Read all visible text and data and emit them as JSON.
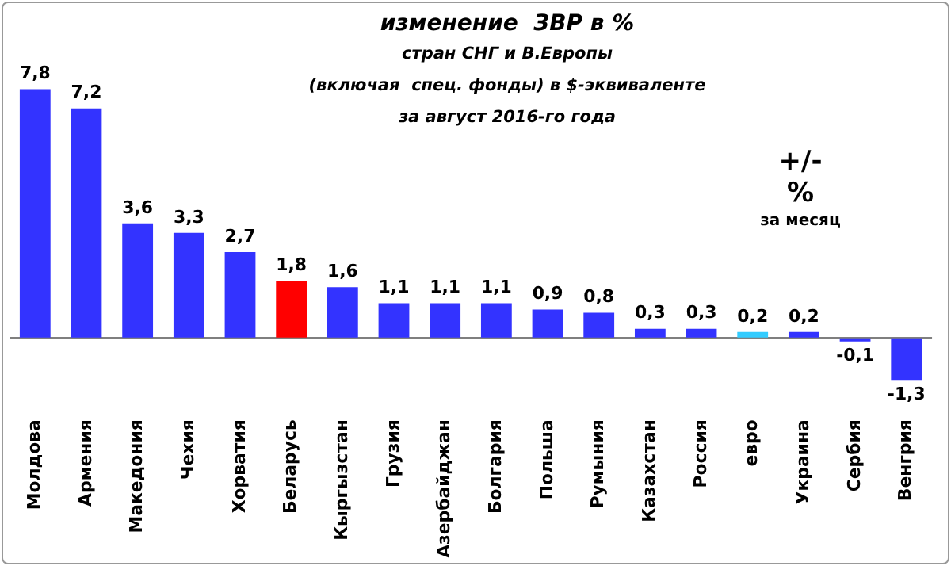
{
  "chart_data": {
    "type": "bar",
    "title": "изменение  ЗВР в %\nстран СНГ и В.Европы\n(включая  спец. фонды) в $-эквиваленте\nза август 2016-го года",
    "categories": [
      "Молдова",
      "Армения",
      "Македония",
      "Чехия",
      "Хорватия",
      "Беларусь",
      "Кыргызстан",
      "Грузия",
      "Азербайджан",
      "Болгария",
      "Польша",
      "Румыния",
      "Казахстан",
      "Россия",
      "евро",
      "Украина",
      "Сербия",
      "Венгрия"
    ],
    "values": [
      7.8,
      7.2,
      3.6,
      3.3,
      2.7,
      1.8,
      1.6,
      1.1,
      1.1,
      1.1,
      0.9,
      0.8,
      0.3,
      0.3,
      0.2,
      0.2,
      -0.1,
      -1.3
    ],
    "value_labels": [
      "7,8",
      "7,2",
      "3,6",
      "3,3",
      "2,7",
      "1,8",
      "1,6",
      "1,1",
      "1,1",
      "1,1",
      "0,9",
      "0,8",
      "0,3",
      "0,3",
      "0,2",
      "0,2",
      "-0,1",
      "-1,3"
    ],
    "colors": [
      "#3333ff",
      "#3333ff",
      "#3333ff",
      "#3333ff",
      "#3333ff",
      "#ff0000",
      "#3333ff",
      "#3333ff",
      "#3333ff",
      "#3333ff",
      "#3333ff",
      "#3333ff",
      "#3333ff",
      "#3333ff",
      "#33ccff",
      "#3333ff",
      "#3333ff",
      "#3333ff"
    ],
    "annotations": [
      "+/-\n%\nза месяц"
    ],
    "grid": false,
    "legend": false
  }
}
